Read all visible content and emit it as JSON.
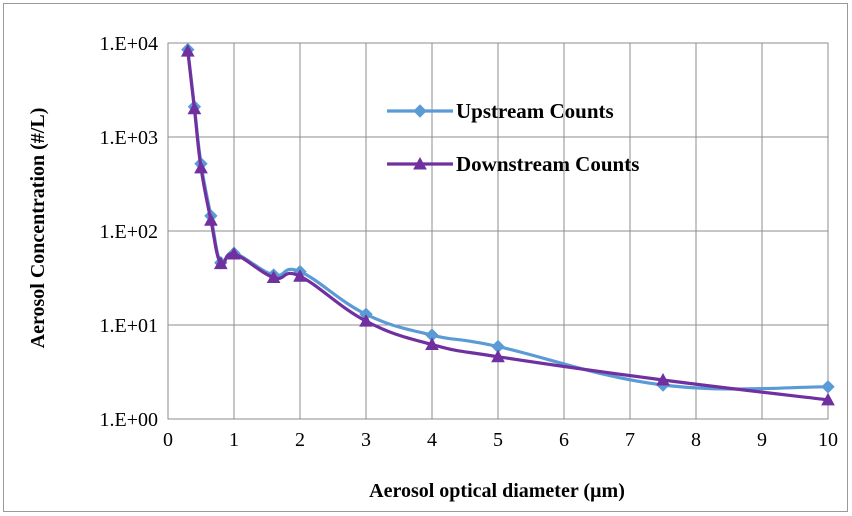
{
  "chart_data": {
    "type": "line",
    "title": "",
    "xlabel": "Aerosol  optical diameter (µm)",
    "ylabel": "Aerosol Concentration (#/L)",
    "x_scale": "linear",
    "y_scale": "log",
    "xlim": [
      0,
      10
    ],
    "ylim": [
      1,
      10000
    ],
    "x_ticks": [
      0,
      1,
      2,
      3,
      4,
      5,
      6,
      7,
      8,
      9,
      10
    ],
    "x_tick_labels": [
      "0",
      "1",
      "2",
      "3",
      "4",
      "5",
      "6",
      "7",
      "8",
      "9",
      "10"
    ],
    "y_ticks": [
      1,
      10,
      100,
      1000,
      10000
    ],
    "y_tick_labels": [
      "1.E+00",
      "1.E+01",
      "1.E+02",
      "1.E+03",
      "1.E+04"
    ],
    "grid": "both",
    "legend_position": "top-right",
    "series": [
      {
        "name": "Upstream Counts",
        "color": "#5b9bd5",
        "marker": "diamond",
        "x": [
          0.3,
          0.4,
          0.5,
          0.65,
          0.8,
          1.0,
          1.6,
          2.0,
          3.0,
          4.0,
          5.0,
          7.5,
          10.0
        ],
        "y": [
          8500,
          2100,
          520,
          145,
          46,
          58,
          34,
          37,
          13,
          7.8,
          5.9,
          2.3,
          2.2
        ]
      },
      {
        "name": "Downstream Counts",
        "color": "#7030a0",
        "marker": "triangle",
        "x": [
          0.3,
          0.4,
          0.5,
          0.65,
          0.8,
          1.0,
          1.6,
          2.0,
          3.0,
          4.0,
          5.0,
          7.5,
          10.0
        ],
        "y": [
          8200,
          2000,
          470,
          130,
          45,
          57,
          32,
          33,
          11,
          6.2,
          4.6,
          2.6,
          1.6
        ]
      }
    ]
  }
}
